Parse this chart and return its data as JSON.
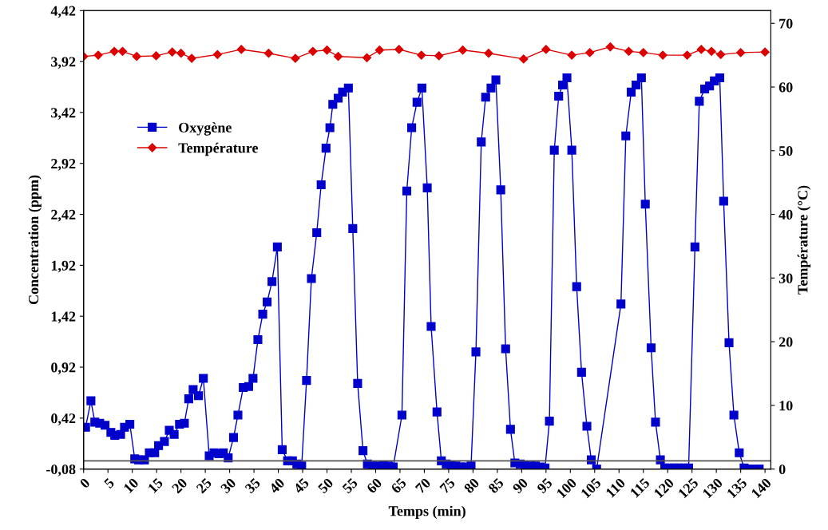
{
  "chart_data": {
    "type": "line",
    "xlabel": "Temps (min)",
    "ylabel": "Concentration (ppm)",
    "y2label": "Température (°C)",
    "xlim": [
      0,
      141.2
    ],
    "xticks": [
      0,
      5,
      10,
      15,
      20,
      25,
      30,
      35,
      40,
      45,
      50,
      55,
      60,
      65,
      70,
      75,
      80,
      85,
      90,
      95,
      100,
      105,
      110,
      115,
      120,
      125,
      130,
      135,
      140
    ],
    "ylim": [
      -0.08,
      4.42
    ],
    "yticks": [
      {
        "value": -0.08,
        "label": "-0,08"
      },
      {
        "value": 0.42,
        "label": "0,42"
      },
      {
        "value": 0.92,
        "label": "0,92"
      },
      {
        "value": 1.42,
        "label": "1,42"
      },
      {
        "value": 1.92,
        "label": "1,92"
      },
      {
        "value": 2.42,
        "label": "2,42"
      },
      {
        "value": 2.92,
        "label": "2,92"
      },
      {
        "value": 3.42,
        "label": "3,42"
      },
      {
        "value": 3.92,
        "label": "3,92"
      },
      {
        "value": 4.42,
        "label": "4,42"
      }
    ],
    "y2lim": [
      0,
      72
    ],
    "y2ticks": [
      0,
      10,
      20,
      30,
      40,
      50,
      60,
      70
    ],
    "grid": false,
    "legend": "left",
    "ref_lines": [
      {
        "axis": "y",
        "value": 0,
        "color": "#555555",
        "line_style": "solid"
      }
    ],
    "series": [
      {
        "name": "Oxygène",
        "color": "#0000cc",
        "marker": "square",
        "line_style": "solid",
        "x": [
          0.4,
          1.5,
          2.3,
          3.3,
          4.4,
          5.6,
          6.4,
          7.6,
          8.4,
          9.5,
          10.5,
          11.3,
          12.5,
          13.5,
          14.6,
          15.4,
          16.6,
          17.6,
          18.6,
          19.7,
          20.7,
          21.6,
          22.5,
          23.6,
          24.6,
          25.8,
          26.8,
          27.8,
          28.7,
          29.7,
          30.8,
          31.7,
          32.8,
          33.9,
          34.8,
          35.8,
          36.8,
          37.7,
          38.7,
          39.8,
          40.8,
          41.9,
          42.9,
          43.8,
          44.8,
          45.8,
          46.8,
          47.9,
          48.8,
          49.8,
          50.6,
          51.2,
          52.3,
          53.2,
          54.4,
          55.3,
          56.3,
          57.4,
          58.3,
          59.3,
          60.3,
          61.6,
          62.6,
          63.6,
          65.4,
          66.4,
          67.4,
          68.5,
          69.5,
          70.6,
          71.4,
          72.6,
          73.5,
          74.5,
          75.5,
          76.5,
          77.5,
          78.5,
          79.6,
          80.6,
          81.7,
          82.6,
          83.7,
          84.7,
          85.7,
          86.7,
          87.7,
          88.6,
          89.7,
          90.7,
          91.8,
          92.8,
          93.8,
          94.8,
          95.7,
          96.7,
          97.6,
          98.4,
          99.3,
          100.3,
          101.3,
          102.3,
          103.4,
          104.3,
          105.4,
          110.4,
          111.4,
          112.5,
          113.5,
          114.6,
          115.4,
          116.6,
          117.5,
          118.5,
          119.4,
          120.4,
          121.3,
          122.3,
          123.3,
          124.3,
          125.6,
          126.5,
          127.6,
          128.6,
          129.6,
          130.7,
          131.5,
          132.6,
          133.6,
          134.7,
          135.7,
          136.7,
          137.7,
          138.8
        ],
        "values": [
          0.33,
          0.59,
          0.38,
          0.37,
          0.35,
          0.28,
          0.25,
          0.26,
          0.33,
          0.36,
          0.02,
          0.01,
          0.01,
          0.08,
          0.08,
          0.15,
          0.19,
          0.3,
          0.26,
          0.36,
          0.37,
          0.61,
          0.7,
          0.64,
          0.81,
          0.05,
          0.08,
          0.07,
          0.08,
          0.03,
          0.23,
          0.45,
          0.72,
          0.73,
          0.81,
          1.19,
          1.44,
          1.56,
          1.76,
          2.1,
          0.11,
          0.0,
          0.0,
          -0.03,
          -0.05,
          0.79,
          1.79,
          2.24,
          2.71,
          3.07,
          3.27,
          3.5,
          3.56,
          3.62,
          3.66,
          2.28,
          0.76,
          0.1,
          -0.03,
          -0.05,
          -0.05,
          -0.04,
          -0.05,
          -0.06,
          0.45,
          2.65,
          3.27,
          3.52,
          3.66,
          2.68,
          1.32,
          0.48,
          0.0,
          -0.03,
          -0.04,
          -0.05,
          -0.06,
          -0.06,
          -0.05,
          1.07,
          3.13,
          3.57,
          3.66,
          3.74,
          2.66,
          1.1,
          0.31,
          -0.02,
          -0.03,
          -0.04,
          -0.05,
          -0.05,
          -0.06,
          -0.07,
          0.39,
          3.05,
          3.58,
          3.69,
          3.76,
          3.05,
          1.71,
          0.87,
          0.34,
          0.01,
          -0.08,
          1.54,
          3.19,
          3.62,
          3.69,
          3.76,
          2.52,
          1.11,
          0.38,
          0.01,
          -0.07,
          -0.07,
          -0.07,
          -0.07,
          -0.07,
          -0.07,
          2.1,
          3.53,
          3.65,
          3.68,
          3.73,
          3.76,
          2.55,
          1.16,
          0.45,
          0.08,
          -0.07,
          -0.08,
          -0.08,
          -0.08
        ]
      },
      {
        "name": "Température",
        "color": "#dd0000",
        "marker": "diamond",
        "line_style": "solid",
        "axis": "y2",
        "x": [
          0,
          3,
          6.3,
          8,
          10.9,
          14.9,
          18.2,
          20,
          22.2,
          27.5,
          32.4,
          38,
          43.5,
          47.1,
          50,
          52.3,
          58.2,
          60.8,
          64.8,
          69.4,
          73,
          77.9,
          83.2,
          90.4,
          95,
          100.3,
          104,
          108.2,
          112,
          115,
          119,
          124,
          126.9,
          129,
          130.9,
          135,
          140
        ],
        "values": [
          64.8,
          65.0,
          65.6,
          65.6,
          64.8,
          64.9,
          65.5,
          65.3,
          64.5,
          65.1,
          65.9,
          65.3,
          64.5,
          65.6,
          65.8,
          64.8,
          64.6,
          65.8,
          65.9,
          65.0,
          64.9,
          65.8,
          65.3,
          64.4,
          65.9,
          65.0,
          65.4,
          66.3,
          65.6,
          65.4,
          65.0,
          65.0,
          65.9,
          65.6,
          65.1,
          65.4,
          65.5
        ]
      }
    ]
  }
}
